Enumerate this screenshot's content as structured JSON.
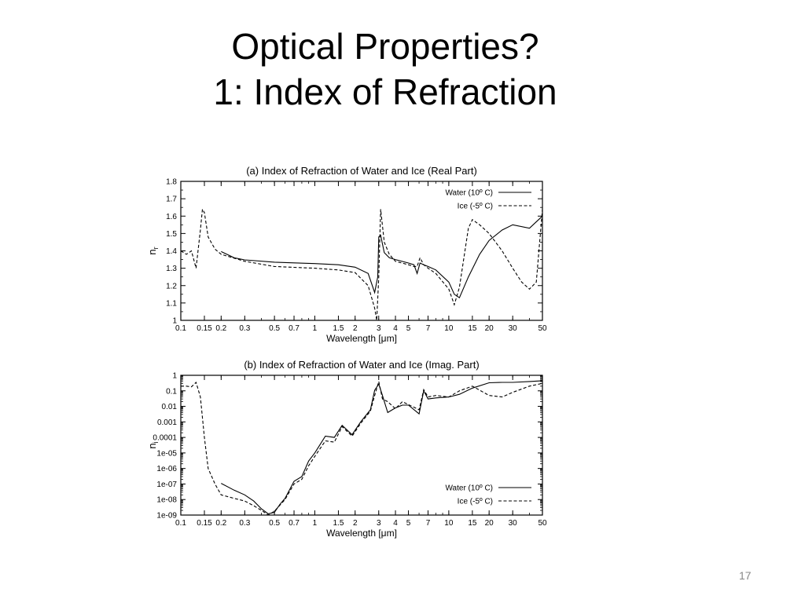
{
  "slide": {
    "title_line1": "Optical Properties?",
    "title_line2": "1: Index of Refraction",
    "page_number": "17"
  },
  "chart_data": [
    {
      "type": "line",
      "title": "(a) Index of Refraction of Water and Ice (Real Part)",
      "xlabel": "Wavelength [μm]",
      "ylabel": "n_r",
      "xscale": "log",
      "xlim": [
        0.1,
        50
      ],
      "ylim": [
        1.0,
        1.8
      ],
      "xticks": [
        "0.1",
        "0.15",
        "0.2",
        "0.3",
        "0.5",
        "0.7",
        "1",
        "1.5",
        "2",
        "3",
        "4",
        "5",
        "7",
        "10",
        "15",
        "20",
        "30",
        "50"
      ],
      "yticks": [
        "1",
        "1.1",
        "1.2",
        "1.3",
        "1.4",
        "1.5",
        "1.6",
        "1.7",
        "1.8"
      ],
      "legend": "top-right",
      "series": [
        {
          "name": "Water (10º C)",
          "style": "solid",
          "x": [
            0.2,
            0.25,
            0.3,
            0.5,
            0.7,
            1.0,
            1.5,
            2.0,
            2.5,
            2.8,
            2.95,
            3.0,
            3.1,
            3.3,
            3.6,
            4.0,
            5.0,
            5.5,
            5.8,
            6.1,
            6.5,
            7.0,
            8.0,
            10.0,
            11.0,
            12.0,
            14.0,
            17.0,
            20.0,
            25.0,
            30.0,
            40.0,
            50.0
          ],
          "y": [
            1.396,
            1.36,
            1.348,
            1.335,
            1.331,
            1.327,
            1.32,
            1.306,
            1.27,
            1.16,
            1.25,
            1.48,
            1.49,
            1.39,
            1.36,
            1.35,
            1.33,
            1.32,
            1.27,
            1.33,
            1.32,
            1.31,
            1.29,
            1.22,
            1.15,
            1.13,
            1.25,
            1.38,
            1.46,
            1.52,
            1.55,
            1.53,
            1.6
          ]
        },
        {
          "name": "Ice (-5º C)",
          "style": "dashed",
          "x": [
            0.1,
            0.11,
            0.12,
            0.13,
            0.14,
            0.145,
            0.15,
            0.16,
            0.18,
            0.2,
            0.3,
            0.5,
            0.7,
            1.0,
            1.5,
            2.0,
            2.5,
            2.8,
            2.9,
            3.0,
            3.1,
            3.3,
            3.6,
            4.0,
            5.0,
            5.5,
            5.8,
            6.1,
            6.5,
            7.0,
            8.0,
            10.0,
            11.0,
            12.0,
            14.0,
            15.0,
            17.0,
            20.0,
            25.0,
            30.0,
            35.0,
            40.0,
            45.0,
            50.0
          ],
          "y": [
            1.4,
            1.38,
            1.4,
            1.3,
            1.52,
            1.64,
            1.62,
            1.48,
            1.41,
            1.38,
            1.34,
            1.31,
            1.305,
            1.3,
            1.29,
            1.275,
            1.2,
            1.07,
            1.0,
            1.25,
            1.64,
            1.45,
            1.38,
            1.34,
            1.32,
            1.31,
            1.31,
            1.36,
            1.32,
            1.3,
            1.27,
            1.18,
            1.09,
            1.19,
            1.53,
            1.58,
            1.55,
            1.5,
            1.4,
            1.3,
            1.22,
            1.18,
            1.22,
            1.64
          ]
        }
      ]
    },
    {
      "type": "line",
      "title": "(b) Index of Refraction of Water and Ice (Imag. Part)",
      "xlabel": "Wavelength [μm]",
      "ylabel": "n_i",
      "xscale": "log",
      "yscale": "log",
      "xlim": [
        0.1,
        50
      ],
      "ylim": [
        1e-09,
        1
      ],
      "xticks": [
        "0.1",
        "0.15",
        "0.2",
        "0.3",
        "0.5",
        "0.7",
        "1",
        "1.5",
        "2",
        "3",
        "4",
        "5",
        "7",
        "10",
        "15",
        "20",
        "30",
        "50"
      ],
      "yticks": [
        "1e-09",
        "1e-08",
        "1e-07",
        "1e-06",
        "1e-05",
        "0.0001",
        "0.001",
        "0.01",
        "0.1",
        "1"
      ],
      "legend": "bottom-right",
      "series": [
        {
          "name": "Water (10º C)",
          "style": "solid",
          "x": [
            0.2,
            0.25,
            0.3,
            0.35,
            0.4,
            0.45,
            0.5,
            0.55,
            0.6,
            0.7,
            0.8,
            0.9,
            1.0,
            1.2,
            1.4,
            1.6,
            1.9,
            2.2,
            2.6,
            2.8,
            3.0,
            3.2,
            3.5,
            4.0,
            4.5,
            5.0,
            6.0,
            6.5,
            7.0,
            8.0,
            10.0,
            12.0,
            15.0,
            20.0,
            25.0,
            30.0,
            40.0,
            50.0
          ],
          "y": [
            1.1e-07,
            4e-08,
            2e-08,
            8e-09,
            2.5e-09,
            1.2e-09,
            1.5e-09,
            5e-09,
            1.2e-08,
            1.5e-07,
            3e-07,
            3e-06,
            1e-05,
            0.00012,
            0.0001,
            0.0006,
            0.00015,
            0.001,
            0.006,
            0.11,
            0.27,
            0.05,
            0.004,
            0.008,
            0.012,
            0.012,
            0.0033,
            0.1,
            0.03,
            0.035,
            0.04,
            0.06,
            0.15,
            0.33,
            0.35,
            0.35,
            0.4,
            0.45
          ]
        },
        {
          "name": "Ice (-5º C)",
          "style": "dashed",
          "x": [
            0.1,
            0.11,
            0.12,
            0.13,
            0.14,
            0.15,
            0.16,
            0.18,
            0.2,
            0.25,
            0.3,
            0.35,
            0.4,
            0.45,
            0.5,
            0.6,
            0.7,
            0.8,
            0.9,
            1.0,
            1.2,
            1.4,
            1.6,
            1.9,
            2.2,
            2.6,
            2.8,
            3.0,
            3.2,
            3.5,
            4.0,
            4.5,
            5.0,
            6.0,
            6.5,
            7.0,
            8.0,
            10.0,
            12.0,
            15.0,
            20.0,
            25.0,
            30.0,
            40.0,
            50.0
          ],
          "y": [
            0.2,
            0.2,
            0.18,
            0.35,
            0.04,
            0.0001,
            1e-06,
            1e-07,
            2e-08,
            1.2e-08,
            8e-09,
            4e-09,
            2e-09,
            1e-09,
            1.8e-09,
            1e-08,
            1e-07,
            2e-07,
            1.5e-06,
            6e-06,
            6e-05,
            5e-05,
            0.0005,
            0.00012,
            0.0008,
            0.005,
            0.05,
            0.4,
            0.03,
            0.02,
            0.007,
            0.02,
            0.013,
            0.006,
            0.12,
            0.04,
            0.05,
            0.04,
            0.1,
            0.2,
            0.05,
            0.04,
            0.08,
            0.2,
            0.3
          ]
        }
      ]
    }
  ]
}
